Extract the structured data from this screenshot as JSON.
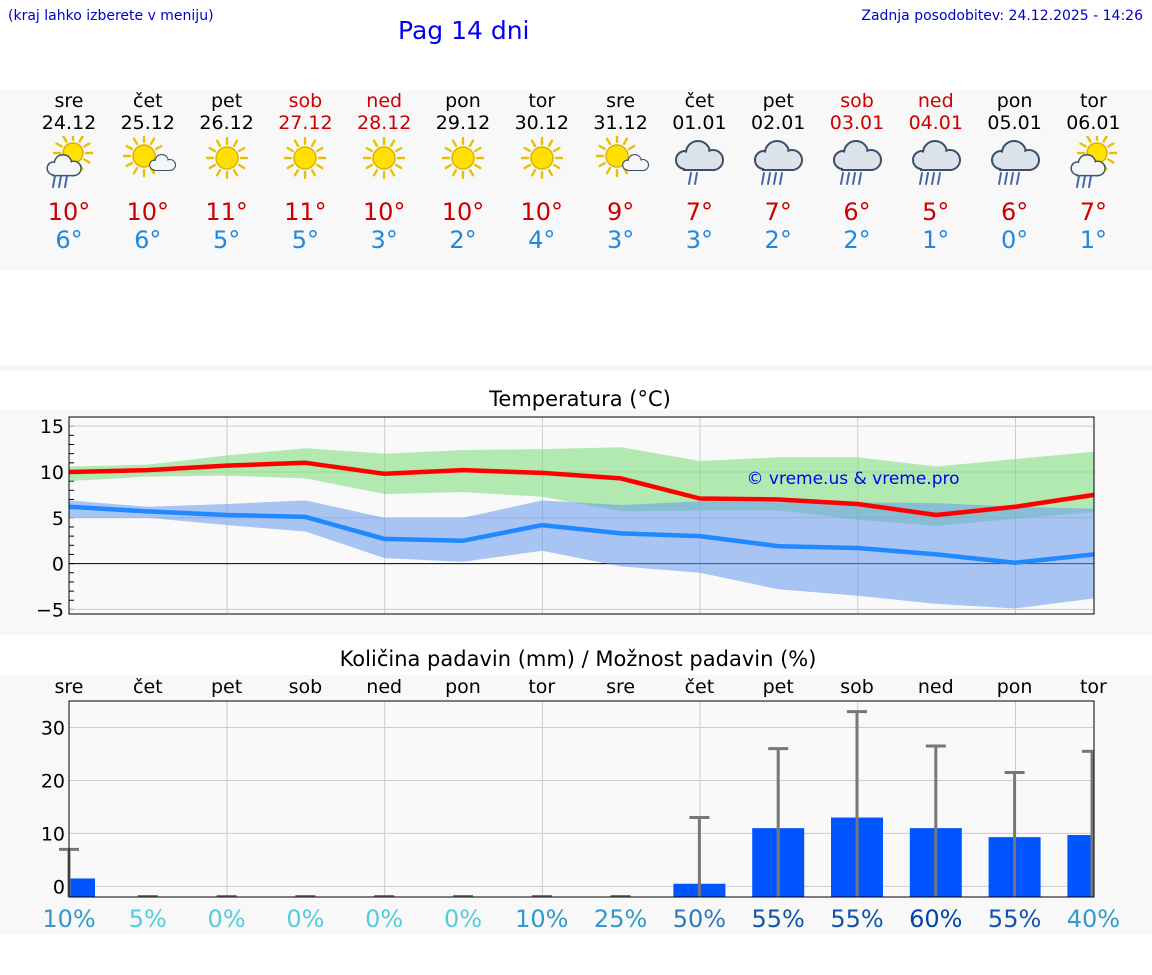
{
  "header": {
    "hint": "(kraj lahko izberete v meniju)",
    "title": "Pag 14 dni",
    "updated": "Zadnja posodobitev: 24.12.2025 - 14:26"
  },
  "colors": {
    "link_blue": "#0000cc",
    "title_blue": "#0000ee",
    "max_red": "#cc0000",
    "min_blue": "#2288dd",
    "bar_blue": "#0055ff"
  },
  "days": [
    {
      "name": "sre",
      "date": "24.12",
      "tmax": "10°",
      "tmin": "6°",
      "icon": "sun-cloud-rain-icon",
      "weekend": false
    },
    {
      "name": "čet",
      "date": "25.12",
      "tmax": "10°",
      "tmin": "6°",
      "icon": "sun-small-cloud-icon",
      "weekend": false
    },
    {
      "name": "pet",
      "date": "26.12",
      "tmax": "11°",
      "tmin": "5°",
      "icon": "sun-icon",
      "weekend": false
    },
    {
      "name": "sob",
      "date": "27.12",
      "tmax": "11°",
      "tmin": "5°",
      "icon": "sun-icon",
      "weekend": true
    },
    {
      "name": "ned",
      "date": "28.12",
      "tmax": "10°",
      "tmin": "3°",
      "icon": "sun-icon",
      "weekend": true
    },
    {
      "name": "pon",
      "date": "29.12",
      "tmax": "10°",
      "tmin": "2°",
      "icon": "sun-icon",
      "weekend": false
    },
    {
      "name": "tor",
      "date": "30.12",
      "tmax": "10°",
      "tmin": "4°",
      "icon": "sun-icon",
      "weekend": false
    },
    {
      "name": "sre",
      "date": "31.12",
      "tmax": "9°",
      "tmin": "3°",
      "icon": "sun-small-cloud-icon",
      "weekend": false
    },
    {
      "name": "čet",
      "date": "01.01",
      "tmax": "7°",
      "tmin": "3°",
      "icon": "cloud-light-rain-icon",
      "weekend": false
    },
    {
      "name": "pet",
      "date": "02.01",
      "tmax": "7°",
      "tmin": "2°",
      "icon": "cloud-rain-icon",
      "weekend": false
    },
    {
      "name": "sob",
      "date": "03.01",
      "tmax": "6°",
      "tmin": "2°",
      "icon": "cloud-rain-icon",
      "weekend": true
    },
    {
      "name": "ned",
      "date": "04.01",
      "tmax": "5°",
      "tmin": "1°",
      "icon": "cloud-rain-icon",
      "weekend": true
    },
    {
      "name": "pon",
      "date": "05.01",
      "tmax": "6°",
      "tmin": "0°",
      "icon": "cloud-rain-icon",
      "weekend": false
    },
    {
      "name": "tor",
      "date": "06.01",
      "tmax": "7°",
      "tmin": "1°",
      "icon": "sun-cloud-rain-icon",
      "weekend": false
    }
  ],
  "chart_data": [
    {
      "type": "line",
      "title": "Temperatura (°C)",
      "watermark": "© vreme.us & vreme.pro",
      "ylim": [
        -5.5,
        16
      ],
      "yticks": [
        "15",
        "10",
        "5",
        "0",
        "−5"
      ],
      "ytick_values": [
        15,
        10,
        5,
        0,
        -5
      ],
      "x": [
        0,
        1,
        2,
        3,
        4,
        5,
        6,
        7,
        8,
        9,
        10,
        11,
        12,
        13
      ],
      "series": [
        {
          "name": "max",
          "color": "#ff0000",
          "values": [
            10.0,
            10.2,
            10.7,
            11.0,
            9.8,
            10.2,
            9.9,
            9.3,
            7.1,
            7.0,
            6.5,
            5.3,
            6.2,
            7.5
          ]
        },
        {
          "name": "min",
          "color": "#2288ff",
          "values": [
            6.2,
            5.7,
            5.3,
            5.1,
            2.7,
            2.5,
            4.2,
            3.3,
            3.0,
            1.9,
            1.7,
            1.0,
            0.1,
            1.0
          ]
        }
      ],
      "bands": [
        {
          "name": "max-range",
          "color": "#77dd77",
          "upper": [
            10.6,
            10.8,
            11.8,
            12.6,
            12.0,
            12.4,
            12.5,
            12.7,
            11.2,
            11.6,
            11.6,
            10.6,
            11.4,
            12.2
          ],
          "lower": [
            9.0,
            9.5,
            9.6,
            9.3,
            7.6,
            7.8,
            7.3,
            5.7,
            5.8,
            5.8,
            4.8,
            4.1,
            4.9,
            5.6
          ]
        },
        {
          "name": "min-range",
          "color": "#6699ee",
          "upper": [
            6.9,
            6.2,
            6.5,
            6.9,
            5.0,
            5.0,
            6.9,
            6.4,
            6.8,
            6.7,
            6.7,
            6.6,
            6.2,
            6.0
          ],
          "lower": [
            5.0,
            5.0,
            4.2,
            3.5,
            0.6,
            0.2,
            1.4,
            -0.3,
            -1.0,
            -2.8,
            -3.5,
            -4.4,
            -4.9,
            -3.8
          ]
        }
      ]
    },
    {
      "type": "bar",
      "title": "Količina padavin (mm) / Možnost padavin (%)",
      "categories": [
        "sre",
        "čet",
        "pet",
        "sob",
        "ned",
        "pon",
        "tor",
        "sre",
        "čet",
        "pet",
        "sob",
        "ned",
        "pon",
        "tor"
      ],
      "ylim": [
        -2,
        35
      ],
      "yticks": [
        "30",
        "20",
        "10",
        "0"
      ],
      "ytick_values": [
        30,
        20,
        10,
        0
      ],
      "values": [
        1.5,
        0,
        0,
        0,
        0,
        0,
        0,
        0,
        0.5,
        11,
        13,
        11,
        9.3,
        9.7
      ],
      "error_max": [
        7,
        0,
        0,
        0,
        0,
        0,
        0,
        0,
        13,
        26,
        33,
        26.5,
        21.5,
        25.5
      ],
      "chance": [
        "10%",
        "5%",
        "0%",
        "0%",
        "0%",
        "0%",
        "10%",
        "25%",
        "50%",
        "55%",
        "55%",
        "60%",
        "55%",
        "40%"
      ],
      "chance_colors": [
        "#3399cc",
        "#55ccdd",
        "#55ccdd",
        "#55ccdd",
        "#55ccdd",
        "#55ccdd",
        "#3399cc",
        "#3399cc",
        "#3377bb",
        "#1155aa",
        "#1155aa",
        "#0044aa",
        "#1155aa",
        "#3399cc"
      ]
    }
  ]
}
